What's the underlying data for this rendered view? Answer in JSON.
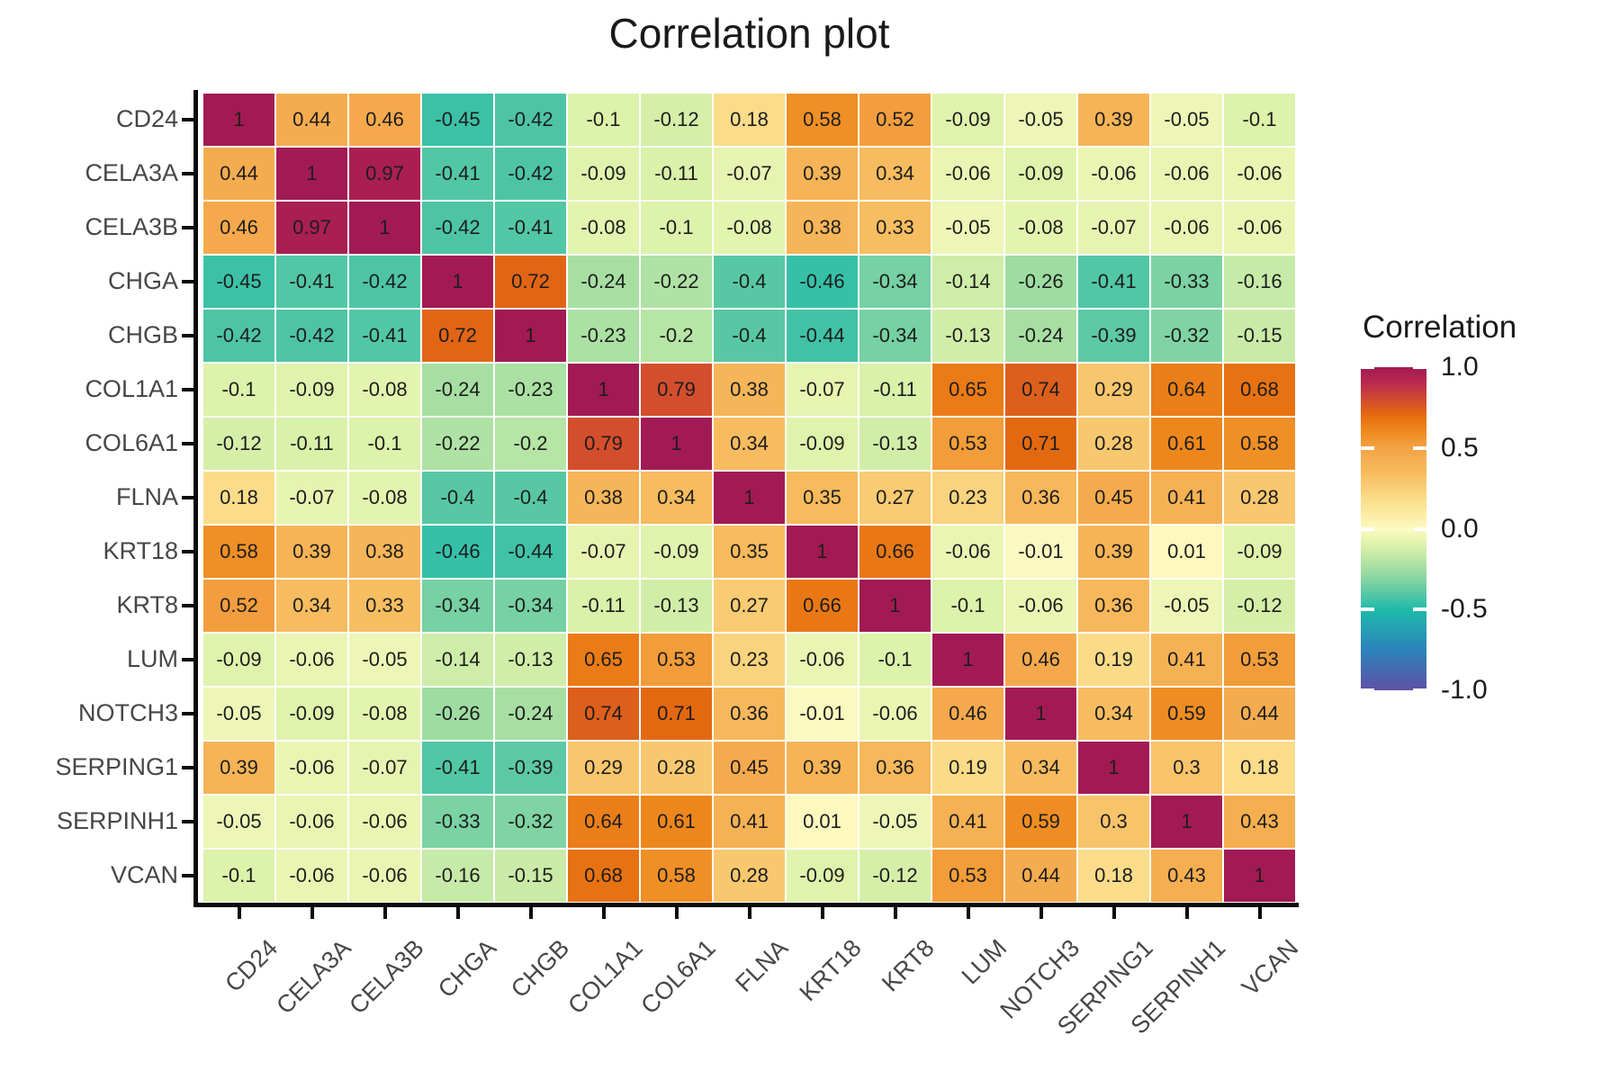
{
  "chart_data": {
    "type": "heatmap",
    "title": "Correlation plot",
    "legend": {
      "title": "Correlation",
      "tick_labels": [
        "1.0",
        "0.5",
        "0.0",
        "-0.5",
        "-1.0"
      ],
      "tick_values": [
        1.0,
        0.5,
        0.0,
        -0.5,
        -1.0
      ],
      "range": [
        -1.0,
        1.0
      ],
      "position": "right"
    },
    "categories": [
      "CD24",
      "CELA3A",
      "CELA3B",
      "CHGA",
      "CHGB",
      "COL1A1",
      "COL6A1",
      "FLNA",
      "KRT18",
      "KRT8",
      "LUM",
      "NOTCH3",
      "SERPING1",
      "SERPINH1",
      "VCAN"
    ],
    "matrix": [
      [
        1,
        0.44,
        0.46,
        -0.45,
        -0.42,
        -0.1,
        -0.12,
        0.18,
        0.58,
        0.52,
        -0.09,
        -0.05,
        0.39,
        -0.05,
        -0.1
      ],
      [
        0.44,
        1,
        0.97,
        -0.41,
        -0.42,
        -0.09,
        -0.11,
        -0.07,
        0.39,
        0.34,
        -0.06,
        -0.09,
        -0.06,
        -0.06,
        -0.06
      ],
      [
        0.46,
        0.97,
        1,
        -0.42,
        -0.41,
        -0.08,
        -0.1,
        -0.08,
        0.38,
        0.33,
        -0.05,
        -0.08,
        -0.07,
        -0.06,
        -0.06
      ],
      [
        -0.45,
        -0.41,
        -0.42,
        1,
        0.72,
        -0.24,
        -0.22,
        -0.4,
        -0.46,
        -0.34,
        -0.14,
        -0.26,
        -0.41,
        -0.33,
        -0.16
      ],
      [
        -0.42,
        -0.42,
        -0.41,
        0.72,
        1,
        -0.23,
        -0.2,
        -0.4,
        -0.44,
        -0.34,
        -0.13,
        -0.24,
        -0.39,
        -0.32,
        -0.15
      ],
      [
        -0.1,
        -0.09,
        -0.08,
        -0.24,
        -0.23,
        1,
        0.79,
        0.38,
        -0.07,
        -0.11,
        0.65,
        0.74,
        0.29,
        0.64,
        0.68
      ],
      [
        -0.12,
        -0.11,
        -0.1,
        -0.22,
        -0.2,
        0.79,
        1,
        0.34,
        -0.09,
        -0.13,
        0.53,
        0.71,
        0.28,
        0.61,
        0.58
      ],
      [
        0.18,
        -0.07,
        -0.08,
        -0.4,
        -0.4,
        0.38,
        0.34,
        1,
        0.35,
        0.27,
        0.23,
        0.36,
        0.45,
        0.41,
        0.28
      ],
      [
        0.58,
        0.39,
        0.38,
        -0.46,
        -0.44,
        -0.07,
        -0.09,
        0.35,
        1,
        0.66,
        -0.06,
        -0.01,
        0.39,
        0.01,
        -0.09
      ],
      [
        0.52,
        0.34,
        0.33,
        -0.34,
        -0.34,
        -0.11,
        -0.13,
        0.27,
        0.66,
        1,
        -0.1,
        -0.06,
        0.36,
        -0.05,
        -0.12
      ],
      [
        -0.09,
        -0.06,
        -0.05,
        -0.14,
        -0.13,
        0.65,
        0.53,
        0.23,
        -0.06,
        -0.1,
        1,
        0.46,
        0.19,
        0.41,
        0.53
      ],
      [
        -0.05,
        -0.09,
        -0.08,
        -0.26,
        -0.24,
        0.74,
        0.71,
        0.36,
        -0.01,
        -0.06,
        0.46,
        1,
        0.34,
        0.59,
        0.44
      ],
      [
        0.39,
        -0.06,
        -0.07,
        -0.41,
        -0.39,
        0.29,
        0.28,
        0.45,
        0.39,
        0.36,
        0.19,
        0.34,
        1,
        0.3,
        0.18
      ],
      [
        -0.05,
        -0.06,
        -0.06,
        -0.33,
        -0.32,
        0.64,
        0.61,
        0.41,
        0.01,
        -0.05,
        0.41,
        0.59,
        0.3,
        1,
        0.43
      ],
      [
        -0.1,
        -0.06,
        -0.06,
        -0.16,
        -0.15,
        0.68,
        0.58,
        0.28,
        -0.09,
        -0.12,
        0.53,
        0.44,
        0.18,
        0.43,
        1
      ]
    ],
    "palette_stops": [
      [
        -1.0,
        "#5E51A5"
      ],
      [
        -0.75,
        "#2B83BB"
      ],
      [
        -0.5,
        "#1FBAAA"
      ],
      [
        -0.4,
        "#58C8A4"
      ],
      [
        -0.25,
        "#A3DEA2"
      ],
      [
        -0.1,
        "#DDF2AA"
      ],
      [
        0.0,
        "#FDFAC1"
      ],
      [
        0.1,
        "#FCEA9F"
      ],
      [
        0.2,
        "#FAD985"
      ],
      [
        0.35,
        "#F7BA5C"
      ],
      [
        0.5,
        "#F4A346"
      ],
      [
        0.6,
        "#EE8A1E"
      ],
      [
        0.7,
        "#E56C0E"
      ],
      [
        0.8,
        "#D24B30"
      ],
      [
        0.9,
        "#B92B4D"
      ],
      [
        1.0,
        "#A21A54"
      ]
    ],
    "layout_hints": {
      "x_label_rotation_deg": 45,
      "values_shown_in_cells": true,
      "grid": false
    }
  }
}
